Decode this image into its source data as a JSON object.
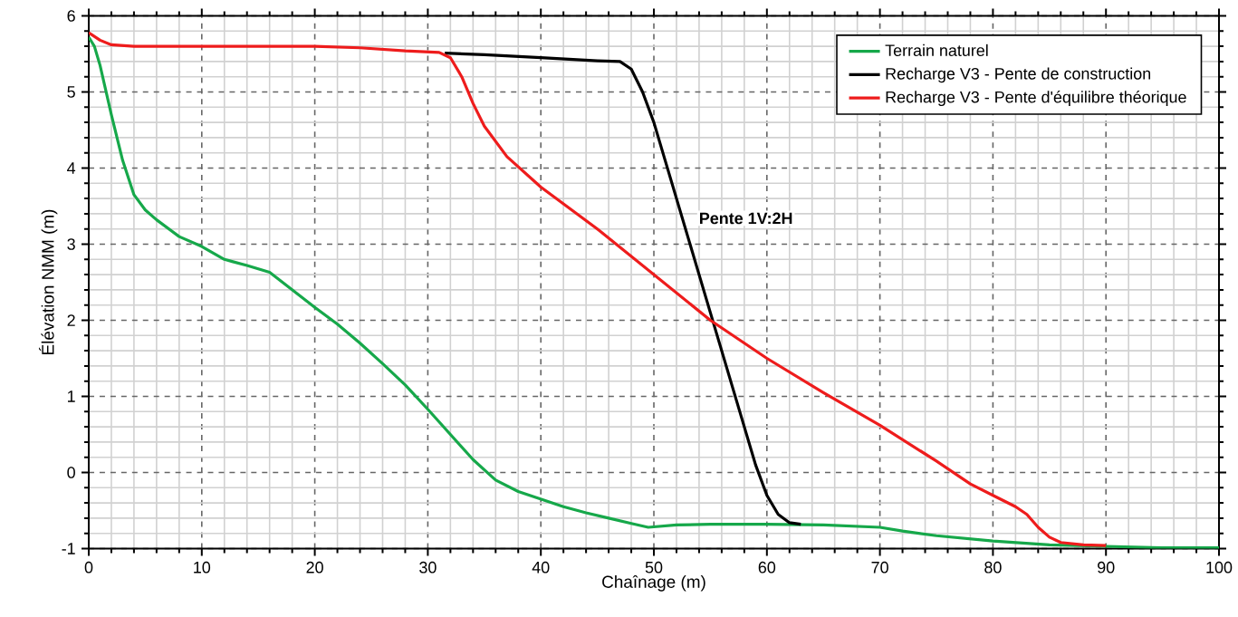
{
  "chart_data": {
    "type": "line",
    "xlabel": "Chaînage (m)",
    "ylabel": "Élévation NMM (m)",
    "xlim": [
      0,
      100
    ],
    "ylim": [
      -1,
      6
    ],
    "xticks": [
      0,
      10,
      20,
      30,
      40,
      50,
      60,
      70,
      80,
      90,
      100
    ],
    "yticks": [
      -1,
      0,
      1,
      2,
      3,
      4,
      5,
      6
    ],
    "grid": true,
    "legend": "top right",
    "marker": "none",
    "line_style": "solid",
    "annotations": [
      "Pente 1V:2H"
    ],
    "series": [
      {
        "name": "Terrain naturel",
        "color": "#16a84a",
        "x": [
          0,
          0.5,
          1,
          2,
          3,
          4,
          5,
          6,
          8,
          10,
          12,
          14,
          16,
          18,
          20,
          22,
          24,
          26,
          28,
          30,
          32,
          34,
          36,
          38,
          40,
          42,
          44,
          46,
          48,
          49.5,
          52,
          55,
          60,
          65,
          70,
          72,
          75,
          80,
          85,
          90,
          95,
          100
        ],
        "values": [
          5.72,
          5.6,
          5.35,
          4.7,
          4.1,
          3.65,
          3.45,
          3.32,
          3.1,
          2.97,
          2.8,
          2.72,
          2.63,
          2.4,
          2.17,
          1.95,
          1.7,
          1.43,
          1.15,
          0.83,
          0.5,
          0.17,
          -0.1,
          -0.25,
          -0.35,
          -0.45,
          -0.53,
          -0.6,
          -0.67,
          -0.72,
          -0.69,
          -0.68,
          -0.68,
          -0.69,
          -0.72,
          -0.77,
          -0.83,
          -0.9,
          -0.95,
          -0.97,
          -0.99,
          -0.99
        ]
      },
      {
        "name": "Recharge V3 - Pente de construction",
        "color": "#000000",
        "x": [
          31.5,
          35,
          40,
          45,
          47,
          48,
          49,
          50,
          51,
          52,
          53,
          54,
          55,
          56,
          57,
          58,
          59,
          60,
          61,
          62,
          63
        ],
        "values": [
          5.51,
          5.49,
          5.45,
          5.41,
          5.4,
          5.3,
          5.0,
          4.6,
          4.1,
          3.6,
          3.1,
          2.6,
          2.1,
          1.6,
          1.1,
          0.6,
          0.1,
          -0.3,
          -0.55,
          -0.66,
          -0.68
        ]
      },
      {
        "name": "Recharge V3 - Pente d'équilibre théorique",
        "color": "#ee1c1c",
        "x": [
          0,
          1,
          2,
          4,
          10,
          20,
          24,
          28,
          31,
          32,
          33,
          34,
          35,
          37,
          40,
          45,
          50,
          55,
          60,
          65,
          70,
          75,
          78,
          80,
          82,
          83,
          84,
          85,
          86,
          88,
          90
        ],
        "values": [
          5.78,
          5.68,
          5.62,
          5.6,
          5.6,
          5.6,
          5.58,
          5.54,
          5.52,
          5.45,
          5.2,
          4.85,
          4.55,
          4.15,
          3.75,
          3.2,
          2.6,
          2.0,
          1.5,
          1.05,
          0.62,
          0.15,
          -0.15,
          -0.3,
          -0.45,
          -0.55,
          -0.72,
          -0.85,
          -0.92,
          -0.95,
          -0.96
        ]
      }
    ]
  }
}
